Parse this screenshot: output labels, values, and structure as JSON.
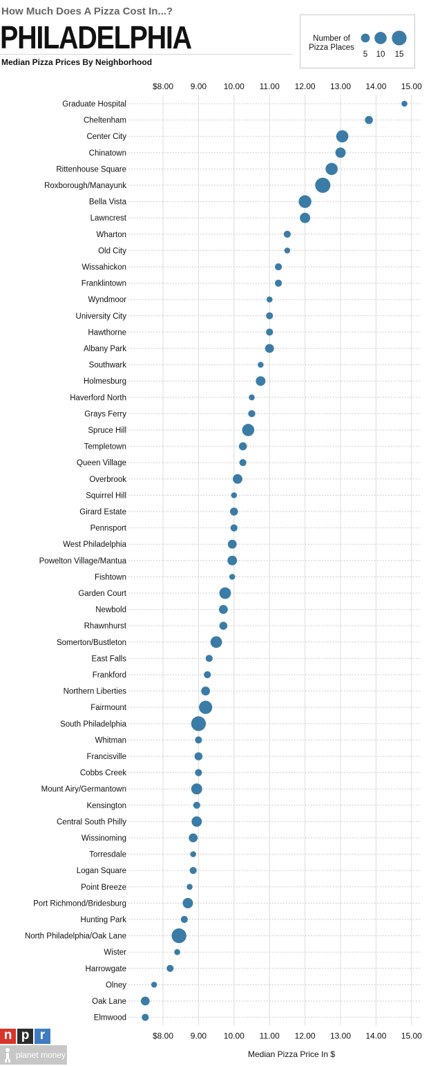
{
  "header": {
    "kicker": "How Much Does A Pizza Cost In...?",
    "city": "PHILADELPHIA",
    "subtitle": "Median Pizza Prices By Neighborhood"
  },
  "legend": {
    "title_line1": "Number of",
    "title_line2": "Pizza Places",
    "sizes": [
      {
        "label": "5",
        "count": 5
      },
      {
        "label": "10",
        "count": 10
      },
      {
        "label": "15",
        "count": 15
      }
    ]
  },
  "chart_data": {
    "type": "scatter",
    "xlabel": "Median Pizza Price In $",
    "xlim": [
      7.0,
      15.2
    ],
    "xticks": [
      {
        "value": 8,
        "label": "$8.00"
      },
      {
        "value": 9,
        "label": "9.00"
      },
      {
        "value": 10,
        "label": "10.00"
      },
      {
        "value": 11,
        "label": "11.00"
      },
      {
        "value": 12,
        "label": "12.00"
      },
      {
        "value": 13,
        "label": "13.00"
      },
      {
        "value": 14,
        "label": "14.00"
      },
      {
        "value": 15,
        "label": "15.00"
      }
    ],
    "grid": true,
    "point_color": "#3b7ca6",
    "points": [
      {
        "name": "Graduate Hospital",
        "price": 14.8,
        "count": 2
      },
      {
        "name": "Cheltenham",
        "price": 13.8,
        "count": 4
      },
      {
        "name": "Center City",
        "price": 13.05,
        "count": 10
      },
      {
        "name": "Chinatown",
        "price": 13.0,
        "count": 7
      },
      {
        "name": "Rittenhouse Square",
        "price": 12.75,
        "count": 10
      },
      {
        "name": "Roxborough/Manayunk",
        "price": 12.5,
        "count": 16
      },
      {
        "name": "Bella Vista",
        "price": 12.0,
        "count": 11
      },
      {
        "name": "Lawncrest",
        "price": 12.0,
        "count": 7
      },
      {
        "name": "Wharton",
        "price": 11.5,
        "count": 3
      },
      {
        "name": "Old City",
        "price": 11.5,
        "count": 2
      },
      {
        "name": "Wissahickon",
        "price": 11.25,
        "count": 3
      },
      {
        "name": "Franklintown",
        "price": 11.25,
        "count": 3
      },
      {
        "name": "Wyndmoor",
        "price": 11.0,
        "count": 2
      },
      {
        "name": "University City",
        "price": 11.0,
        "count": 3
      },
      {
        "name": "Hawthorne",
        "price": 11.0,
        "count": 3
      },
      {
        "name": "Albany Park",
        "price": 11.0,
        "count": 5
      },
      {
        "name": "Southwark",
        "price": 10.75,
        "count": 2
      },
      {
        "name": "Holmesburg",
        "price": 10.75,
        "count": 6
      },
      {
        "name": "Haverford North",
        "price": 10.5,
        "count": 2
      },
      {
        "name": "Grays Ferry",
        "price": 10.5,
        "count": 3
      },
      {
        "name": "Spruce Hill",
        "price": 10.4,
        "count": 10
      },
      {
        "name": "Templetown",
        "price": 10.25,
        "count": 4
      },
      {
        "name": "Queen Village",
        "price": 10.25,
        "count": 3
      },
      {
        "name": "Overbrook",
        "price": 10.1,
        "count": 6
      },
      {
        "name": "Squirrel Hill",
        "price": 10.0,
        "count": 2
      },
      {
        "name": "Girard Estate",
        "price": 10.0,
        "count": 4
      },
      {
        "name": "Pennsport",
        "price": 10.0,
        "count": 3
      },
      {
        "name": "West Philadelphia",
        "price": 9.95,
        "count": 5
      },
      {
        "name": "Powelton Village/Mantua",
        "price": 9.95,
        "count": 6
      },
      {
        "name": "Fishtown",
        "price": 9.95,
        "count": 2
      },
      {
        "name": "Garden Court",
        "price": 9.75,
        "count": 9
      },
      {
        "name": "Newbold",
        "price": 9.7,
        "count": 5
      },
      {
        "name": "Rhawnhurst",
        "price": 9.7,
        "count": 4
      },
      {
        "name": "Somerton/Bustleton",
        "price": 9.5,
        "count": 9
      },
      {
        "name": "East Falls",
        "price": 9.3,
        "count": 3
      },
      {
        "name": "Frankford",
        "price": 9.25,
        "count": 3
      },
      {
        "name": "Northern Liberties",
        "price": 9.2,
        "count": 5
      },
      {
        "name": "Fairmount",
        "price": 9.2,
        "count": 12
      },
      {
        "name": "South Philadelphia",
        "price": 9.0,
        "count": 15
      },
      {
        "name": "Whitman",
        "price": 9.0,
        "count": 3
      },
      {
        "name": "Francisville",
        "price": 9.0,
        "count": 4
      },
      {
        "name": "Cobbs Creek",
        "price": 9.0,
        "count": 3
      },
      {
        "name": "Mount Airy/Germantown",
        "price": 8.95,
        "count": 8
      },
      {
        "name": "Kensington",
        "price": 8.95,
        "count": 3
      },
      {
        "name": "Central South Philly",
        "price": 8.95,
        "count": 7
      },
      {
        "name": "Wissinoming",
        "price": 8.85,
        "count": 5
      },
      {
        "name": "Torresdale",
        "price": 8.85,
        "count": 2
      },
      {
        "name": "Logan Square",
        "price": 8.85,
        "count": 3
      },
      {
        "name": "Point Breeze",
        "price": 8.75,
        "count": 2
      },
      {
        "name": "Port Richmond/Bridesburg",
        "price": 8.7,
        "count": 7
      },
      {
        "name": "Hunting Park",
        "price": 8.6,
        "count": 3
      },
      {
        "name": "North Philadelphia/Oak Lane",
        "price": 8.45,
        "count": 15
      },
      {
        "name": "Wister",
        "price": 8.4,
        "count": 2
      },
      {
        "name": "Harrowgate",
        "price": 8.2,
        "count": 3
      },
      {
        "name": "Olney",
        "price": 7.75,
        "count": 2
      },
      {
        "name": "Oak Lane",
        "price": 7.5,
        "count": 5
      },
      {
        "name": "Elmwood",
        "price": 7.5,
        "count": 3
      }
    ]
  },
  "branding": {
    "npr_letters": [
      "n",
      "p",
      "r"
    ],
    "planet_money": "planet money",
    "npr_colors": [
      "#d9352a",
      "#2b2b2b",
      "#3f7bc1"
    ]
  }
}
